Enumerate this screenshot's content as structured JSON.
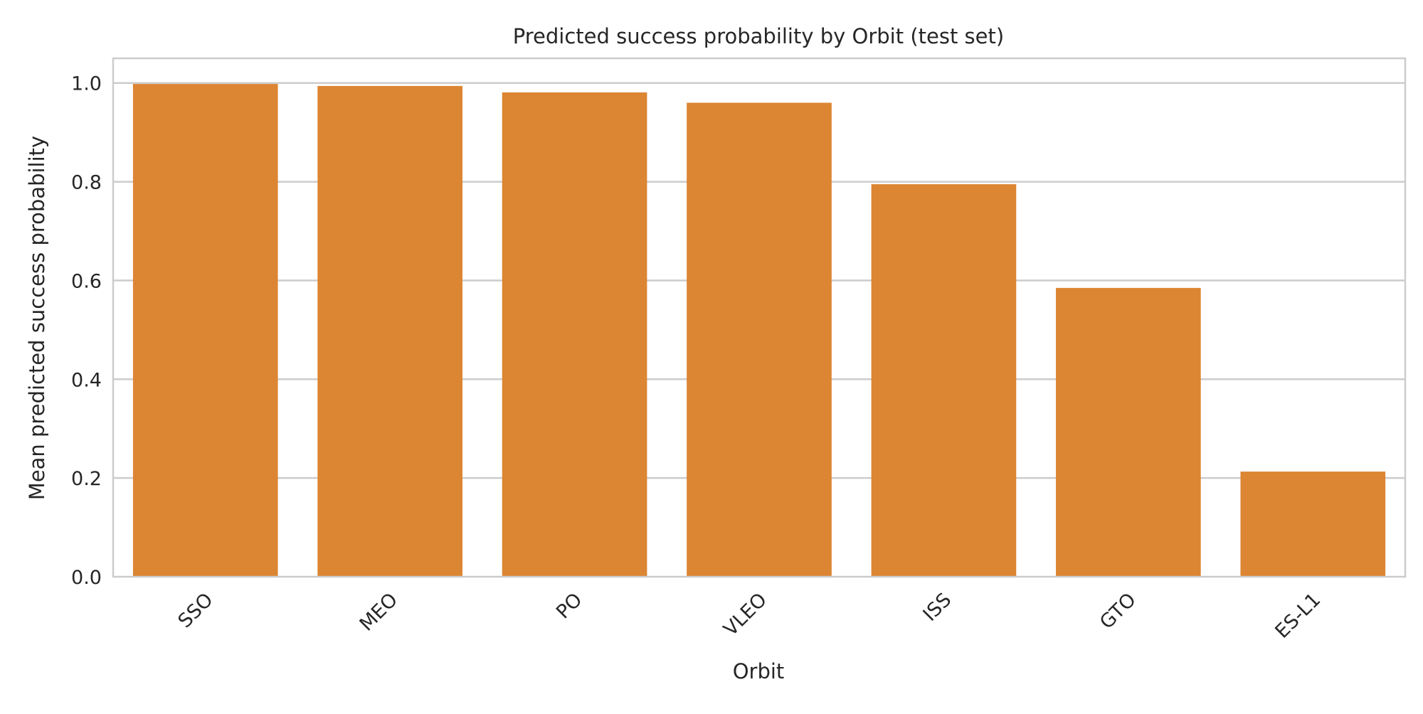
{
  "chart_data": {
    "type": "bar",
    "title": "Predicted success probability by Orbit (test set)",
    "xlabel": "Orbit",
    "ylabel": "Mean predicted success probability",
    "categories": [
      "SSO",
      "MEO",
      "PO",
      "VLEO",
      "ISS",
      "GTO",
      "ES-L1"
    ],
    "values": [
      0.998,
      0.994,
      0.981,
      0.96,
      0.795,
      0.585,
      0.213
    ],
    "ylim": [
      0,
      1.05
    ],
    "yticks": [
      "0.0",
      "0.2",
      "0.4",
      "0.6",
      "0.8",
      "1.0"
    ],
    "grid": true,
    "bar_color": "#dc8532",
    "grid_color": "#cccccc",
    "text_color": "#262626"
  }
}
